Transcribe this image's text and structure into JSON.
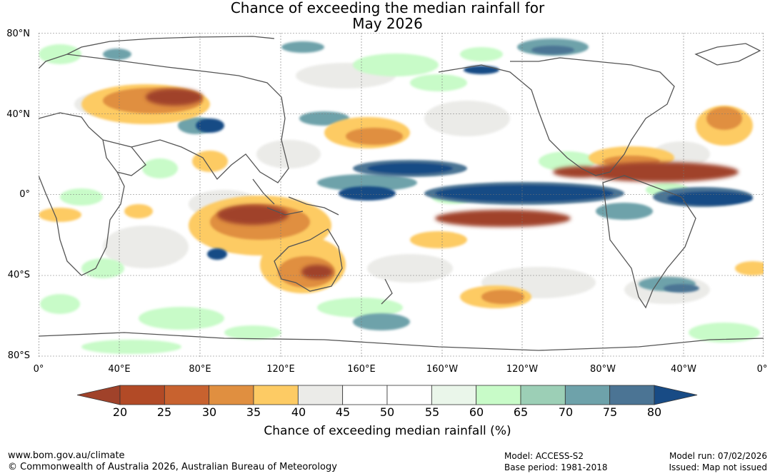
{
  "title": {
    "line1": "Chance of exceeding the median rainfall for",
    "line2": "May 2026"
  },
  "lat_labels": [
    "80°N",
    "40°N",
    "0°",
    "40°S",
    "80°S"
  ],
  "lon_labels": [
    "0°",
    "40°E",
    "80°E",
    "120°E",
    "160°E",
    "160°W",
    "120°W",
    "80°W",
    "40°W",
    "0°"
  ],
  "colorbar": {
    "ticks": [
      "20",
      "25",
      "30",
      "35",
      "40",
      "45",
      "50",
      "55",
      "60",
      "65",
      "70",
      "75",
      "80"
    ],
    "colors": [
      "#a0422a",
      "#b24a26",
      "#c8622f",
      "#e08f40",
      "#fdcb64",
      "#ebebe8",
      "#ffffff",
      "#ffffff",
      "#eaf6ea",
      "#c8fbc8",
      "#9ccfb6",
      "#6ea2aa",
      "#4b7494",
      "#184b85"
    ],
    "label": "Chance of exceeding median rainfall (%)"
  },
  "footer": {
    "website": "www.bom.gov.au/climate",
    "copyright": "© Commonwealth of Australia 2026, Australian Bureau of Meteorology",
    "model": "Model: ACCESS-S2",
    "base_period": "Base period: 1981-2018",
    "model_run": "Model run: 07/02/2026",
    "issued": "Issued: Map not issued"
  }
}
